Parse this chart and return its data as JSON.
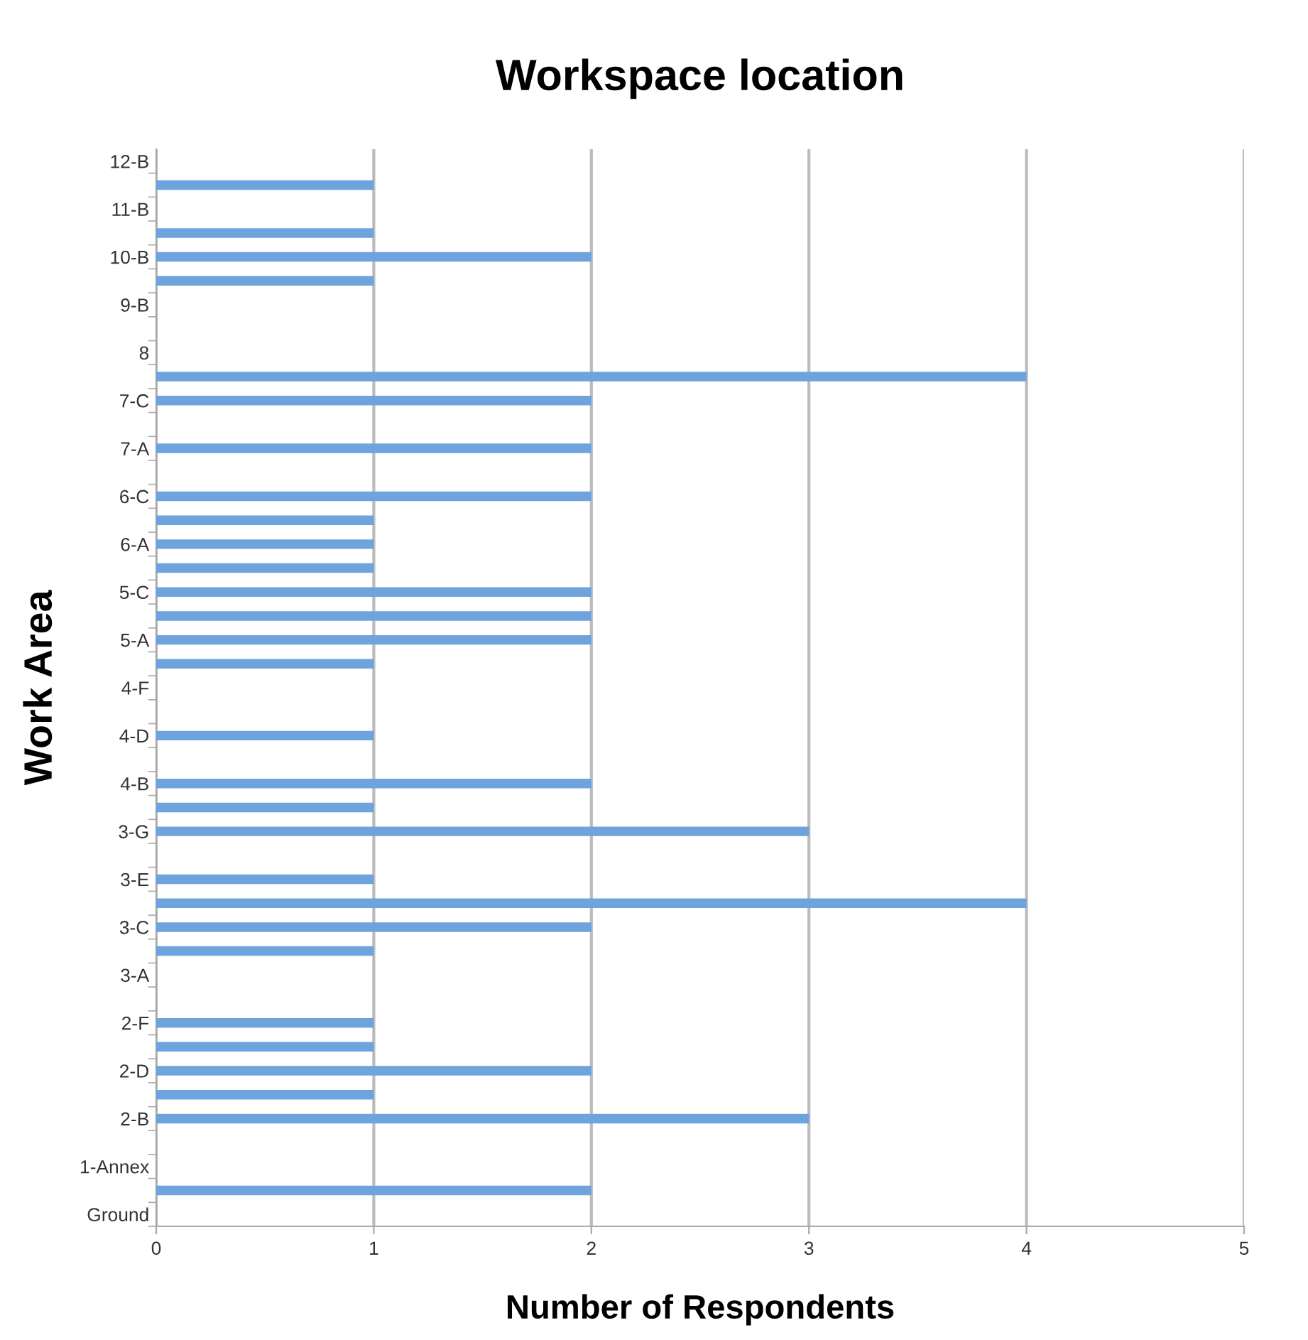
{
  "chart_data": {
    "type": "bar",
    "orientation": "horizontal",
    "title": "Workspace location",
    "xlabel": "Number of Respondents",
    "ylabel": "Work Area",
    "categories": [
      "12-B",
      null,
      "11-B",
      null,
      "10-B",
      null,
      "9-B",
      null,
      "8",
      null,
      "7-C",
      null,
      "7-A",
      null,
      "6-C",
      null,
      "6-A",
      null,
      "5-C",
      null,
      "5-A",
      null,
      "4-F",
      null,
      "4-D",
      null,
      "4-B",
      null,
      "3-G",
      null,
      "3-E",
      null,
      "3-C",
      null,
      "3-A",
      null,
      "2-F",
      null,
      "2-D",
      null,
      "2-B",
      null,
      "1-Annex",
      null,
      "Ground"
    ],
    "values": [
      0,
      1,
      0,
      1,
      2,
      1,
      0,
      0,
      0,
      4,
      2,
      0,
      2,
      0,
      2,
      1,
      1,
      1,
      2,
      2,
      2,
      1,
      0,
      0,
      1,
      0,
      2,
      1,
      3,
      0,
      1,
      4,
      2,
      1,
      0,
      0,
      1,
      1,
      2,
      1,
      3,
      0,
      0,
      2,
      0
    ],
    "color": "#6fa3de",
    "xlim": [
      0,
      5
    ],
    "xticks": [
      0,
      1,
      2,
      3,
      4,
      5
    ],
    "grid": "x"
  }
}
